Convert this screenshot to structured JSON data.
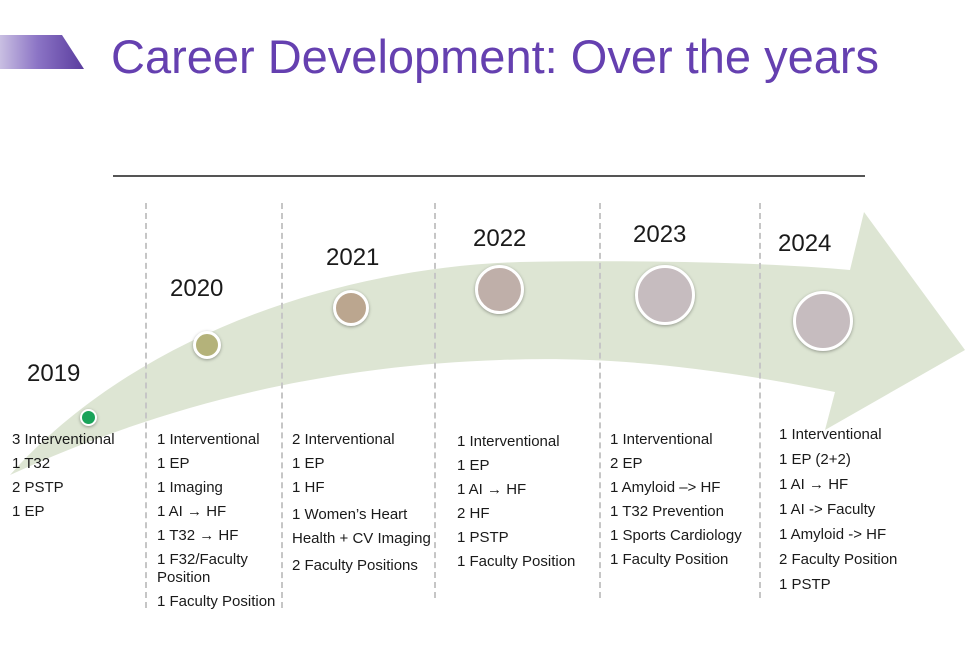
{
  "title": "Career Development: Over the years",
  "colors": {
    "title": "#6540b0",
    "arrow": "#dde5d3",
    "accent_green": "#1aa35a"
  },
  "years": [
    {
      "label": "2019",
      "dot_color": "#1aa35a",
      "items": [
        "3 Interventional",
        "1 T32",
        "2 PSTP",
        "1 EP"
      ]
    },
    {
      "label": "2020",
      "dot_color": "#b4b27a",
      "items": [
        "1 Interventional",
        "1 EP",
        "1 Imaging",
        "1 AI → HF",
        "1 T32 → HF",
        "1 F32/Faculty Position",
        "1 Faculty Position"
      ]
    },
    {
      "label": "2021",
      "dot_color": "#bba68f",
      "items": [
        "2 Interventional",
        "1 EP",
        "1 HF",
        "1 Women’s Heart Health + CV Imaging",
        "2 Faculty Positions"
      ]
    },
    {
      "label": "2022",
      "dot_color": "#bfafa9",
      "items": [
        "1 Interventional",
        "1 EP",
        "1 AI → HF",
        "2 HF",
        "1 PSTP",
        "1 Faculty Position"
      ]
    },
    {
      "label": "2023",
      "dot_color": "#c6bcbf",
      "items": [
        "1 Interventional",
        "2 EP",
        "1 Amyloid –> HF",
        "1 T32 Prevention",
        "1 Sports Cardiology",
        "1 Faculty Position"
      ]
    },
    {
      "label": "2024",
      "dot_color": "#c6bcbf",
      "items": [
        "1 Interventional",
        "1 EP (2+2)",
        "1 AI → HF",
        "1 AI -> Faculty",
        "1 Amyloid -> HF",
        "2 Faculty Position",
        "1 PSTP"
      ]
    }
  ]
}
